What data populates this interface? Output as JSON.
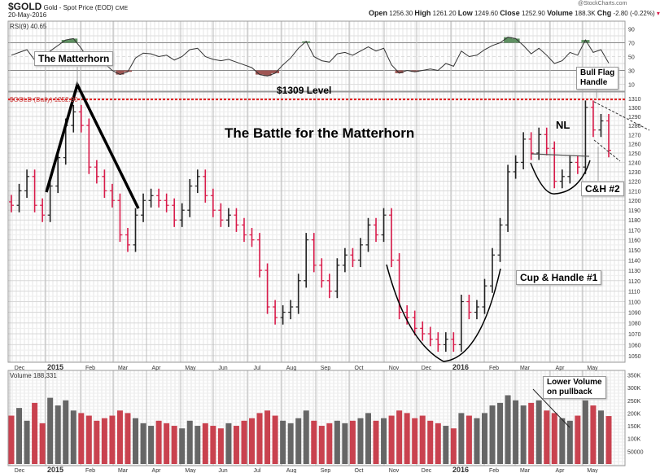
{
  "header": {
    "symbol": "$GOLD",
    "name": "Gold - Spot Price (EOD)",
    "exchange": "CME",
    "date": "20-May-2016",
    "watermark": "@StockCharts.com",
    "open_label": "Open",
    "open": "1256.30",
    "high_label": "High",
    "high": "1261.20",
    "low_label": "Low",
    "low": "1249.60",
    "close_label": "Close",
    "close": "1252.90",
    "volume_label": "Volume",
    "volume": "188.3K",
    "chg_label": "Chg",
    "chg": "-2.80 (-0.22%)"
  },
  "annotations": {
    "matterhorn": "The Matterhorn",
    "level": "$1309 Level",
    "title": "The Battle for the Matterhorn",
    "bull_flag": "Bull Flag\nHandle",
    "nl": "NL",
    "ch2": "C&H #2",
    "ch1": "Cup & Handle #1",
    "lower_volume": "Lower Volume\non pullback"
  },
  "colors": {
    "up": "#222222",
    "down": "#d81b4a",
    "vol_up": "#666666",
    "vol_down": "#c9424f",
    "rsi_over": "#5f9162",
    "rsi_under": "#9e5553",
    "level_line": "#e02020"
  },
  "chart_data": [
    {
      "type": "ohlc",
      "panel": "price",
      "legend": "$GOLD (Daily) 1252.90",
      "scale": "log",
      "ylim": [
        1040,
        1315
      ],
      "yticks": [
        1050,
        1060,
        1070,
        1080,
        1090,
        1100,
        1110,
        1120,
        1130,
        1140,
        1150,
        1160,
        1170,
        1180,
        1190,
        1200,
        1210,
        1220,
        1230,
        1240,
        1250,
        1260,
        1270,
        1280,
        1290,
        1300,
        1310
      ],
      "xticks": [
        "Dec",
        "2015",
        "Feb",
        "Mar",
        "Apr",
        "May",
        "Jun",
        "Jul",
        "Aug",
        "Sep",
        "Oct",
        "Nov",
        "Dec",
        "2016",
        "Feb",
        "Mar",
        "Apr",
        "May"
      ],
      "horizontal_level": 1309,
      "grid": true,
      "closes": [
        1195,
        1210,
        1225,
        1195,
        1185,
        1215,
        1245,
        1280,
        1295,
        1280,
        1235,
        1225,
        1210,
        1200,
        1165,
        1155,
        1185,
        1200,
        1205,
        1200,
        1195,
        1180,
        1190,
        1215,
        1225,
        1205,
        1190,
        1180,
        1185,
        1175,
        1165,
        1160,
        1130,
        1095,
        1085,
        1090,
        1095,
        1120,
        1160,
        1135,
        1120,
        1110,
        1135,
        1145,
        1140,
        1155,
        1175,
        1165,
        1185,
        1140,
        1090,
        1085,
        1075,
        1070,
        1065,
        1060,
        1065,
        1060,
        1100,
        1090,
        1095,
        1115,
        1145,
        1175,
        1230,
        1240,
        1265,
        1250,
        1270,
        1255,
        1220,
        1225,
        1240,
        1235,
        1300,
        1275,
        1285,
        1252.9
      ]
    },
    {
      "type": "line",
      "panel": "rsi",
      "legend": "RSI(9) 40.65",
      "ylim": [
        0,
        100
      ],
      "yticks": [
        10,
        30,
        50,
        70,
        90
      ],
      "overbought": 70,
      "oversold": 30,
      "values": [
        52,
        56,
        60,
        45,
        48,
        58,
        66,
        74,
        76,
        62,
        45,
        42,
        40,
        30,
        24,
        28,
        48,
        55,
        54,
        50,
        52,
        45,
        50,
        60,
        62,
        50,
        46,
        44,
        46,
        42,
        38,
        34,
        24,
        22,
        26,
        38,
        48,
        62,
        72,
        50,
        44,
        42,
        54,
        56,
        52,
        58,
        64,
        58,
        62,
        38,
        26,
        30,
        28,
        30,
        32,
        30,
        40,
        36,
        58,
        50,
        52,
        60,
        66,
        70,
        78,
        76,
        66,
        54,
        62,
        52,
        40,
        44,
        56,
        52,
        74,
        56,
        60,
        40.65
      ]
    },
    {
      "type": "bar",
      "panel": "volume",
      "legend": "Volume 188,331",
      "ylim": [
        0,
        370000
      ],
      "yticks": [
        "50000",
        "100K",
        "150K",
        "200K",
        "250K",
        "300K",
        "350K"
      ],
      "values": [
        190000,
        220000,
        170000,
        240000,
        160000,
        260000,
        230000,
        250000,
        210000,
        200000,
        190000,
        170000,
        180000,
        190000,
        210000,
        200000,
        180000,
        160000,
        150000,
        170000,
        160000,
        150000,
        140000,
        170000,
        150000,
        160000,
        150000,
        140000,
        160000,
        150000,
        170000,
        180000,
        200000,
        210000,
        190000,
        170000,
        160000,
        180000,
        210000,
        170000,
        150000,
        160000,
        170000,
        160000,
        170000,
        180000,
        200000,
        170000,
        180000,
        190000,
        210000,
        200000,
        180000,
        190000,
        170000,
        160000,
        150000,
        140000,
        200000,
        190000,
        180000,
        200000,
        230000,
        240000,
        270000,
        250000,
        230000,
        240000,
        250000,
        210000,
        200000,
        180000,
        170000,
        190000,
        250000,
        230000,
        210000,
        188331
      ]
    }
  ]
}
